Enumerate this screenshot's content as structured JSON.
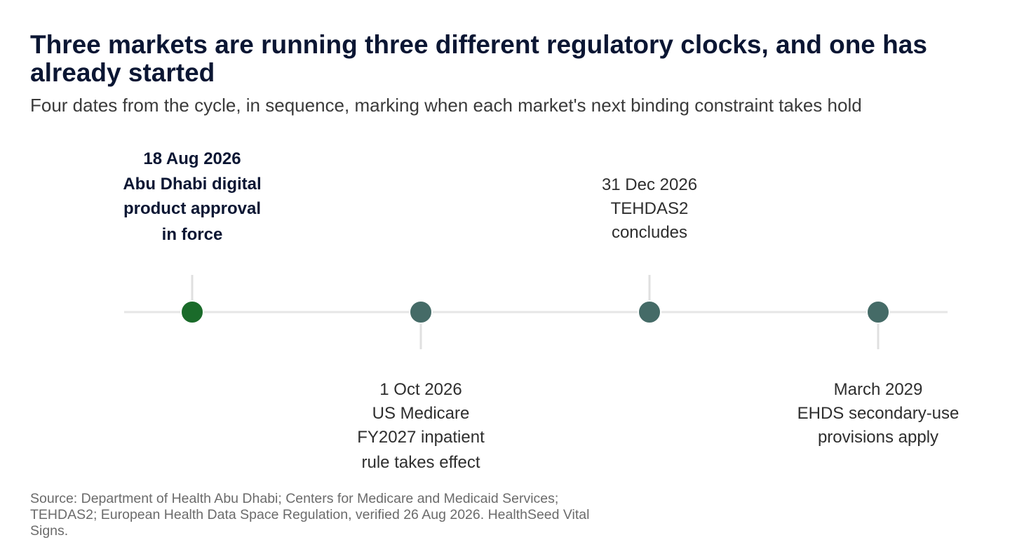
{
  "title": "Three markets are running three different regulatory clocks, and one has already started",
  "subtitle": "Four dates from the cycle, in sequence, marking when each market's next binding constraint takes hold",
  "colors": {
    "axis": "#e6e6e6",
    "tick": "#e0e0e0",
    "highlight_marker": "#1a6b2a",
    "marker": "#456b67"
  },
  "events": [
    {
      "lines": [
        "18 Aug 2026",
        "Abu Dhabi digital",
        "product approval",
        "in force"
      ],
      "highlight": true,
      "position": "above"
    },
    {
      "lines": [
        "1 Oct 2026",
        "US Medicare",
        "FY2027 inpatient",
        "rule takes effect"
      ],
      "highlight": false,
      "position": "below"
    },
    {
      "lines": [
        "31 Dec 2026",
        "TEHDAS2",
        "concludes"
      ],
      "highlight": false,
      "position": "above"
    },
    {
      "lines": [
        "March 2029",
        "EHDS secondary-use",
        "provisions apply"
      ],
      "highlight": false,
      "position": "below"
    }
  ],
  "source": "Source: Department of Health Abu Dhabi; Centers for Medicare and Medicaid Services; TEHDAS2; European Health Data Space Regulation, verified 26 Aug 2026. HealthSeed Vital Signs."
}
